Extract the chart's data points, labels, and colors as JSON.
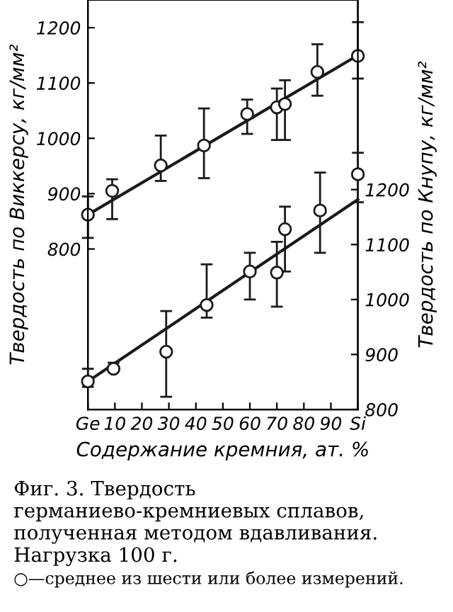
{
  "chart_data": {
    "type": "scatter",
    "xlabel": "Содержание кремния, ат. %",
    "ylabel": "Твердость по Виккерсу, кг/мм²",
    "y2label": "Твердость по Кнупу, кг/мм²",
    "xlim": [
      0,
      100
    ],
    "xticks": [
      {
        "value": 0,
        "label": "Ge"
      },
      10,
      20,
      30,
      40,
      50,
      60,
      70,
      80,
      90,
      {
        "value": 100,
        "label": "Si"
      }
    ],
    "ylim": [
      510,
      1250
    ],
    "yticks": [
      800,
      900,
      1000,
      1100,
      1200
    ],
    "y2lim": [
      800,
      1545
    ],
    "y2ticks": [
      800,
      900,
      1000,
      1100,
      1200
    ],
    "grid": false,
    "legend": false,
    "series": [
      {
        "marker": "circle",
        "color": "#1a1a1a",
        "x": [
          0,
          9,
          27,
          43,
          59,
          70,
          73,
          85,
          100
        ],
        "values": [
          862,
          905,
          951,
          987,
          1044,
          1056,
          1062,
          1120,
          1149
        ],
        "errors": [
          [
            820,
            895
          ],
          [
            854,
            926
          ],
          [
            923,
            1005
          ],
          [
            928,
            1054
          ],
          [
            1008,
            1070
          ],
          [
            997,
            1090
          ],
          [
            997,
            1105
          ],
          [
            1077,
            1170
          ],
          [
            1108,
            1210
          ]
        ]
      },
      {
        "type": "line",
        "color": "#1a1a1a",
        "x": [
          0,
          100
        ],
        "values": [
          862,
          1150
        ]
      },
      {
        "marker": "circle",
        "axis": "y2",
        "color": "#1a1a1a",
        "x": [
          0,
          9.5,
          29,
          44,
          60,
          70,
          73,
          86,
          100
        ],
        "values": [
          851,
          874,
          905,
          990,
          1051,
          1049,
          1128,
          1162,
          1228
        ],
        "errors": [
          [
            841,
            874
          ],
          [
            869,
            885
          ],
          [
            823,
            979
          ],
          [
            967,
            1064
          ],
          [
            1000,
            1085
          ],
          [
            987,
            1105
          ],
          [
            1051,
            1169
          ],
          [
            1085,
            1231
          ],
          [
            1177,
            1267
          ]
        ]
      },
      {
        "type": "line",
        "axis": "y2",
        "color": "#1a1a1a",
        "x": [
          0,
          100
        ],
        "values": [
          851,
          1182
        ]
      }
    ],
    "annotations": [
      "Фиг. 3. Твердость германиево-кремниевых сплавов, полученная методом вдавливания. Нагрузка 100 г.",
      "○—среднее из шести или более измерений."
    ]
  }
}
